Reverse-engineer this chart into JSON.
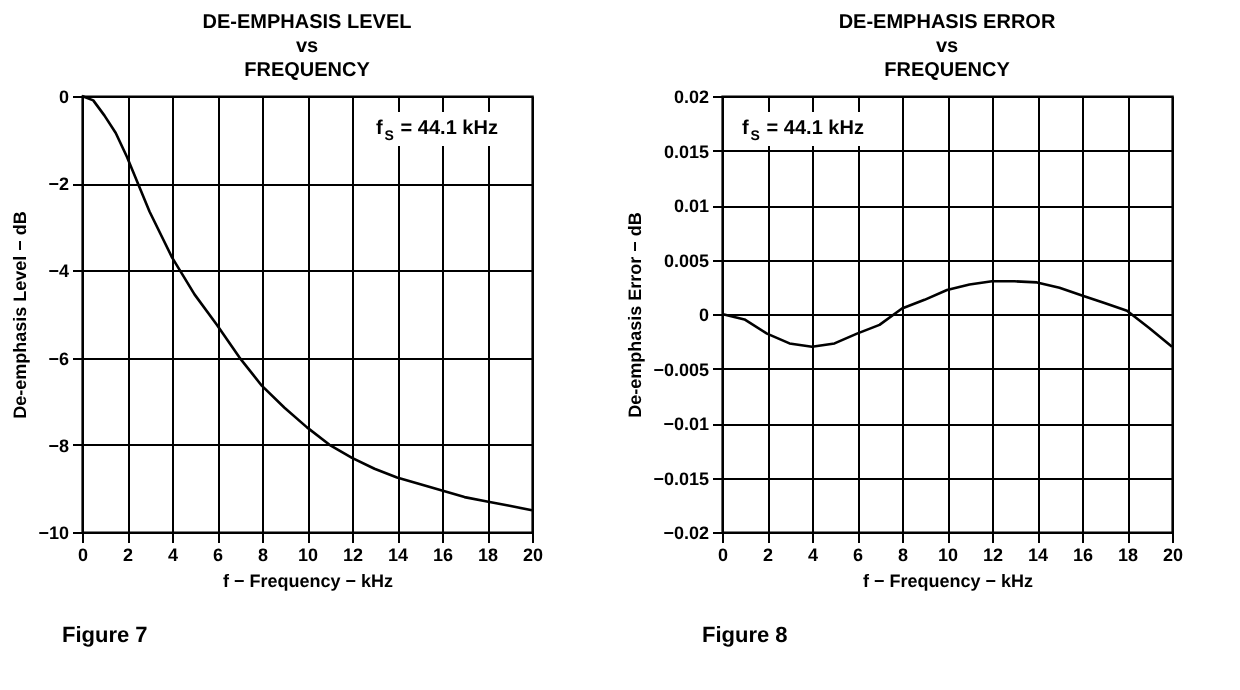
{
  "chart_data": [
    {
      "type": "line",
      "title": "DE-EMPHASIS LEVEL\nvs\nFREQUENCY",
      "xlabel": "f − Frequency − kHz",
      "ylabel": "De-emphasis Level − dB",
      "x": [
        0,
        0.5,
        1,
        1.5,
        2,
        3,
        4,
        5,
        6,
        7,
        8,
        9,
        10,
        11,
        12,
        13,
        14,
        15,
        16,
        17,
        18,
        19,
        20
      ],
      "series": [
        {
          "color": "#000000",
          "values": [
            0,
            -0.1,
            -0.45,
            -0.85,
            -1.4,
            -2.65,
            -3.7,
            -4.55,
            -5.25,
            -6.0,
            -6.65,
            -7.15,
            -7.6,
            -8.0,
            -8.3,
            -8.55,
            -8.75,
            -8.9,
            -9.05,
            -9.2,
            -9.3,
            -9.4,
            -9.5
          ]
        }
      ],
      "xlim": [
        0,
        20
      ],
      "xticks": [
        0,
        2,
        4,
        6,
        8,
        10,
        12,
        14,
        16,
        18,
        20
      ],
      "ylim": [
        -10,
        0
      ],
      "yticks": [
        -10,
        -8,
        -6,
        -4,
        -2,
        0
      ],
      "grid": true,
      "annotations": [
        "f$_{S}$ = 44.1 kHz",
        "Figure 7"
      ]
    },
    {
      "type": "line",
      "title": "DE-EMPHASIS ERROR\nvs\nFREQUENCY",
      "xlabel": "f − Frequency − kHz",
      "ylabel": "De-emphasis Error − dB",
      "x": [
        0,
        1,
        2,
        3,
        4,
        5,
        6,
        7,
        8,
        9,
        10,
        11,
        12,
        13,
        14,
        15,
        16,
        17,
        18,
        19,
        20
      ],
      "series": [
        {
          "color": "#000000",
          "values": [
            0,
            -0.0005,
            -0.0018,
            -0.0027,
            -0.003,
            -0.0027,
            -0.0018,
            -0.001,
            0.0005,
            0.0013,
            0.0022,
            0.0027,
            0.003,
            0.003,
            0.0029,
            0.0024,
            0.0017,
            0.001,
            0.0003,
            -0.0013,
            -0.003
          ]
        }
      ],
      "xlim": [
        0,
        20
      ],
      "xticks": [
        0,
        2,
        4,
        6,
        8,
        10,
        12,
        14,
        16,
        18,
        20
      ],
      "ylim": [
        -0.02,
        0.02
      ],
      "yticks": [
        -0.02,
        -0.015,
        -0.01,
        -0.005,
        0,
        0.005,
        0.01,
        0.015,
        0.02
      ],
      "grid": true,
      "annotations": [
        "f$_{S}$ = 44.1 kHz",
        "Figure 8"
      ]
    }
  ]
}
